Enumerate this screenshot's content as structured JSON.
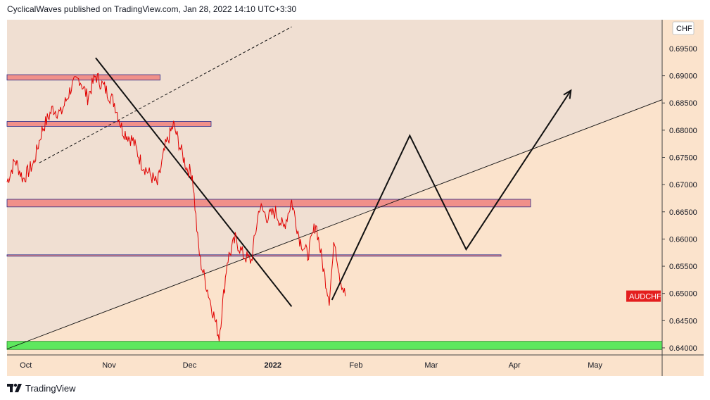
{
  "header": {
    "publisher_line": "CyclicalWaves published on TradingView.com, Jan 28, 2022 14:10 UTC+3:30"
  },
  "footer": {
    "brand": "TradingView",
    "logo_icon": "tradingview-logo-icon"
  },
  "chart_data": {
    "type": "line",
    "symbol_label": "AUDCHF",
    "currency_label": "CHF",
    "last_price": 0.6495,
    "colors": {
      "price_line": "#e00000",
      "symbol_badge": "#e41e1e",
      "resistance_zone": "#f0908a",
      "resistance_border": "#2a2a8a",
      "support_zone": "#5ee85e",
      "upper_background": "#f0dfd2",
      "lower_background": "#fbe3cc",
      "projection": "#111111"
    },
    "y_axis": {
      "ylim": [
        0.6387,
        0.7003
      ],
      "ticks": [
        "0.69000",
        "0.68500",
        "0.68000",
        "0.67500",
        "0.67000",
        "0.66500",
        "0.66000",
        "0.65500",
        "0.65000",
        "0.64500",
        "0.64000"
      ],
      "top_partial_label": "0.69500"
    },
    "x_axis": {
      "xlim": [
        "2021-09-24",
        "2022-05-26"
      ],
      "ticks": [
        {
          "date": "2021-10-01",
          "label": "Oct",
          "bold": false
        },
        {
          "date": "2021-11-01",
          "label": "Nov",
          "bold": false
        },
        {
          "date": "2021-12-01",
          "label": "Dec",
          "bold": false
        },
        {
          "date": "2022-01-01",
          "label": "2022",
          "bold": true
        },
        {
          "date": "2022-02-01",
          "label": "Feb",
          "bold": false
        },
        {
          "date": "2022-03-01",
          "label": "Mar",
          "bold": false
        },
        {
          "date": "2022-04-01",
          "label": "Apr",
          "bold": false
        },
        {
          "date": "2022-05-01",
          "label": "May",
          "bold": false
        }
      ]
    },
    "price_series": {
      "name": "AUDCHF",
      "x": [
        "2021-09-24",
        "2021-09-27",
        "2021-09-30",
        "2021-10-04",
        "2021-10-07",
        "2021-10-11",
        "2021-10-14",
        "2021-10-18",
        "2021-10-21",
        "2021-10-24",
        "2021-10-27",
        "2021-10-30",
        "2021-11-03",
        "2021-11-06",
        "2021-11-10",
        "2021-11-13",
        "2021-11-16",
        "2021-11-19",
        "2021-11-22",
        "2021-11-25",
        "2021-11-28",
        "2021-11-30",
        "2021-12-02",
        "2021-12-04",
        "2021-12-05",
        "2021-12-07",
        "2021-12-09",
        "2021-12-12",
        "2021-12-15",
        "2021-12-18",
        "2021-12-21",
        "2021-12-24",
        "2021-12-27",
        "2021-12-30",
        "2022-01-02",
        "2022-01-05",
        "2022-01-08",
        "2022-01-11",
        "2022-01-14",
        "2022-01-17",
        "2022-01-20",
        "2022-01-22",
        "2022-01-24",
        "2022-01-26",
        "2022-01-28"
      ],
      "values": [
        0.6705,
        0.6745,
        0.671,
        0.674,
        0.68,
        0.684,
        0.683,
        0.688,
        0.6895,
        0.686,
        0.69,
        0.688,
        0.685,
        0.68,
        0.678,
        0.674,
        0.672,
        0.67,
        0.677,
        0.681,
        0.676,
        0.673,
        0.672,
        0.66,
        0.656,
        0.652,
        0.648,
        0.642,
        0.656,
        0.66,
        0.657,
        0.656,
        0.666,
        0.664,
        0.665,
        0.662,
        0.667,
        0.66,
        0.657,
        0.663,
        0.654,
        0.649,
        0.66,
        0.653,
        0.6495
      ]
    },
    "zones": [
      {
        "kind": "resistance",
        "y_bottom": 0.6892,
        "y_top": 0.6902,
        "x_start": "2021-09-24",
        "x_end": "2021-11-20"
      },
      {
        "kind": "resistance",
        "y_bottom": 0.6807,
        "y_top": 0.6816,
        "x_start": "2021-09-24",
        "x_end": "2021-12-09"
      },
      {
        "kind": "resistance",
        "y_bottom": 0.6659,
        "y_top": 0.6673,
        "x_start": "2021-09-24",
        "x_end": "2022-04-07"
      },
      {
        "kind": "line",
        "y_bottom": 0.6569,
        "y_top": 0.6571,
        "x_start": "2021-09-24",
        "x_end": "2022-03-27"
      },
      {
        "kind": "support",
        "y_bottom": 0.6397,
        "y_top": 0.6412,
        "x_start": "2021-09-24",
        "x_end": "2022-05-26"
      }
    ],
    "trendlines": [
      {
        "style": "solid",
        "from": {
          "x": "2021-09-24",
          "y": 0.6398
        },
        "to": {
          "x": "2022-05-26",
          "y": 0.6856
        },
        "width": 0.9
      },
      {
        "style": "dashed",
        "from": {
          "x": "2021-10-06",
          "y": 0.674
        },
        "to": {
          "x": "2022-01-08",
          "y": 0.699
        },
        "width": 1
      },
      {
        "style": "solid",
        "from": {
          "x": "2021-10-27",
          "y": 0.6933
        },
        "to": {
          "x": "2022-01-08",
          "y": 0.6476
        },
        "width": 2
      }
    ],
    "projection_path": [
      {
        "x": "2022-01-23",
        "y": 0.6488
      },
      {
        "x": "2022-02-21",
        "y": 0.679
      },
      {
        "x": "2022-03-14",
        "y": 0.6581
      },
      {
        "x": "2022-04-22",
        "y": 0.6873
      }
    ]
  }
}
